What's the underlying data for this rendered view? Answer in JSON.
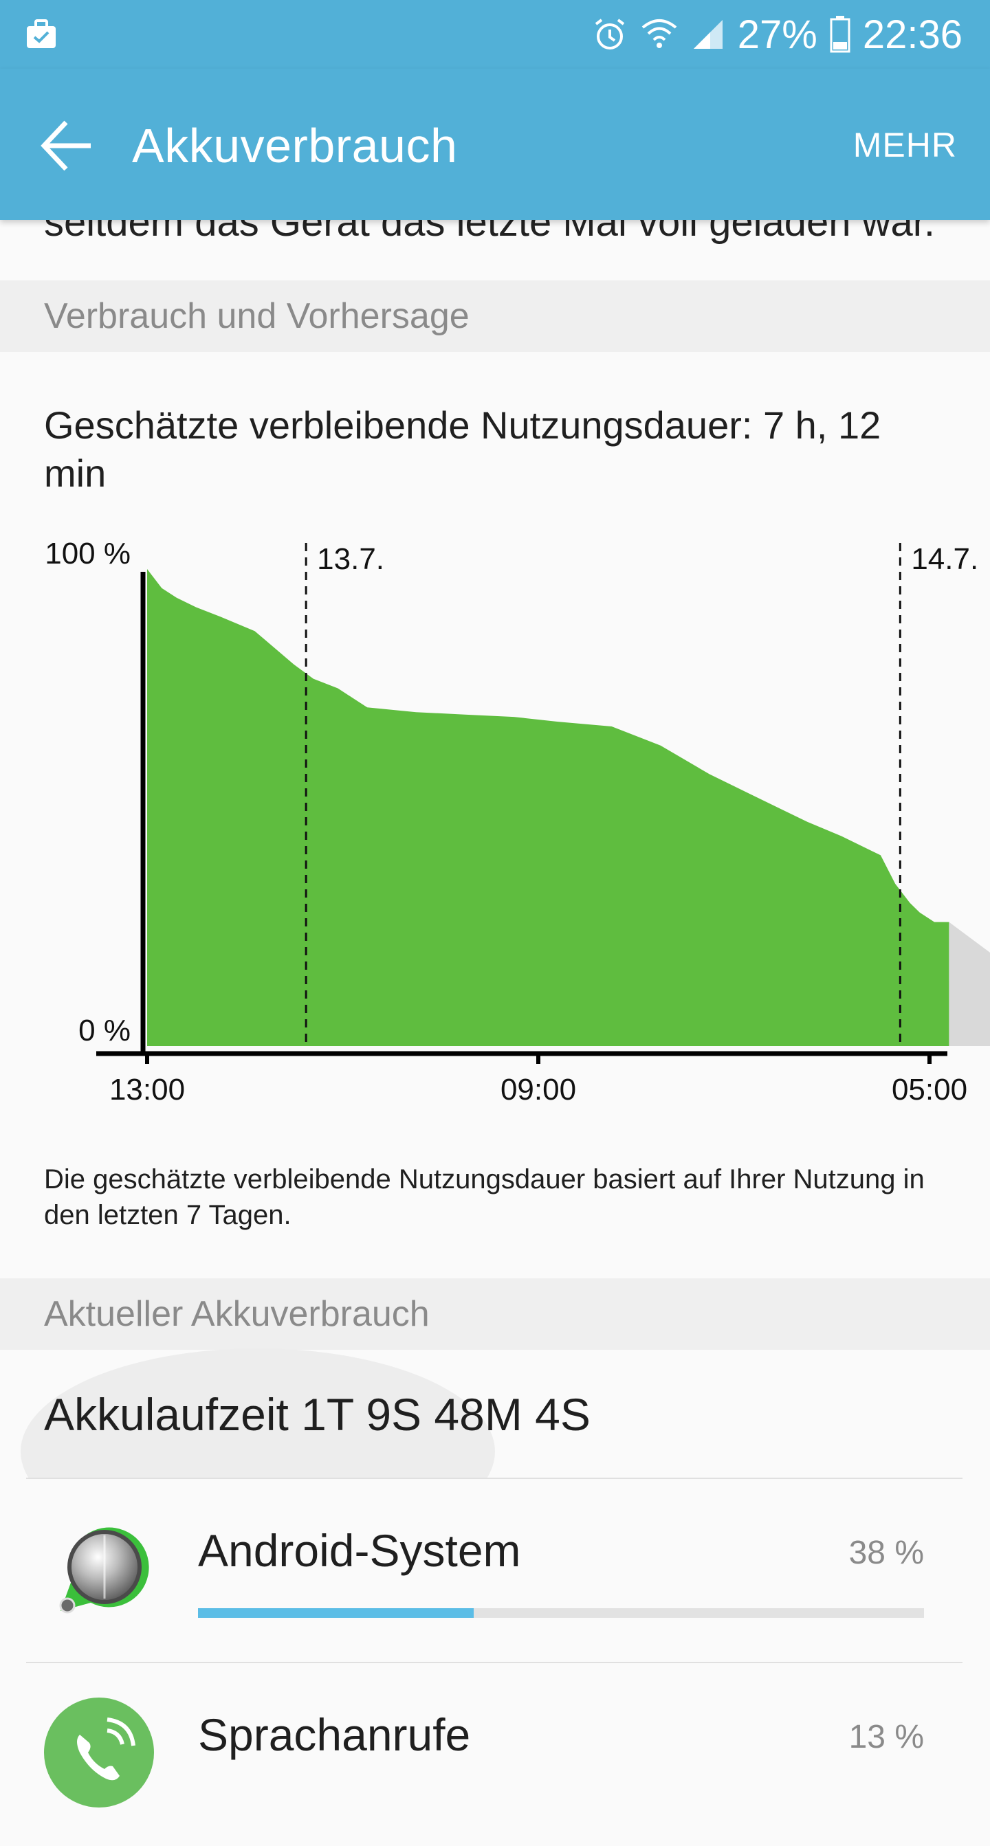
{
  "status_bar": {
    "battery_percent": "27%",
    "time": "22:36",
    "icons": [
      "briefcase-icon",
      "alarm-icon",
      "wifi-icon",
      "signal-icon",
      "battery-icon"
    ]
  },
  "app_bar": {
    "title": "Akkuverbrauch",
    "more_label": "MEHR"
  },
  "content": {
    "cut_text": "seitdem das Gerät das letzte Mal voll geladen war.",
    "section1_header": "Verbrauch und Vorhersage",
    "estimate_text": "Geschätzte verbleibende Nutzungsdauer: 7 h, 12 min",
    "footnote": "Die geschätzte verbleibende Nutzungsdauer basiert auf Ihrer Nutzung in den letzten 7 Tagen.",
    "section2_header": "Aktueller Akkuverbrauch",
    "runtime": "Akkulaufzeit 1T 9S 48M 4S"
  },
  "chart_data": {
    "type": "area",
    "y_labels": [
      "100 %",
      "0 %"
    ],
    "x_tick_labels": [
      "13:00",
      "09:00",
      "05:00"
    ],
    "date_markers": [
      "13.7.",
      "14.7."
    ],
    "ylim": [
      0,
      100
    ],
    "series": [
      {
        "kind": "actual",
        "color": "#5fbd3f",
        "x_hours_since_1300": [
          0,
          0.3,
          0.6,
          1.0,
          1.5,
          2.2,
          3.0,
          3.4,
          3.9,
          4.5,
          5.5,
          6.5,
          7.5,
          8.4,
          9.5,
          10.5,
          11.5,
          12.3,
          13.5,
          14.2,
          15.0,
          15.3,
          15.6,
          15.8,
          16.1,
          16.4
        ],
        "values": [
          100,
          96,
          94,
          92,
          90,
          87,
          80,
          77,
          75,
          71,
          70,
          69.5,
          69,
          68,
          67,
          63,
          57,
          53,
          47,
          44,
          40,
          34,
          30,
          28,
          26,
          26
        ]
      },
      {
        "kind": "forecast",
        "color": "#d9d9d9",
        "x_hours_since_1300": [
          16.4,
          19.8
        ],
        "values": [
          26,
          0
        ]
      }
    ],
    "grid": false
  },
  "apps": [
    {
      "name": "Android-System",
      "percent": "38 %",
      "fraction": 0.38,
      "icon": "android-system-icon"
    },
    {
      "name": "Sprachanrufe",
      "percent": "13 %",
      "fraction": 0.13,
      "icon": "phone-call-icon"
    }
  ]
}
